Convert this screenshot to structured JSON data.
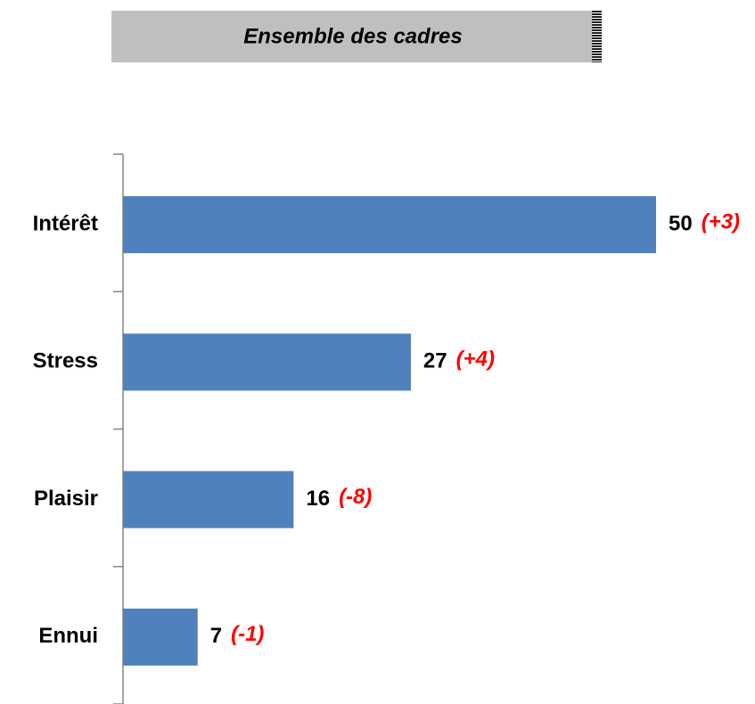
{
  "chart_data": {
    "type": "bar",
    "orientation": "horizontal",
    "title": "Ensemble des cadres",
    "categories": [
      "Intérêt",
      "Stress",
      "Plaisir",
      "Ennui"
    ],
    "values": [
      50,
      27,
      16,
      7
    ],
    "annotations": [
      "(+3)",
      "(+4)",
      "(-8)",
      "(-1)"
    ],
    "color": "#4f81bd",
    "annotation_color": "#ff0000"
  }
}
